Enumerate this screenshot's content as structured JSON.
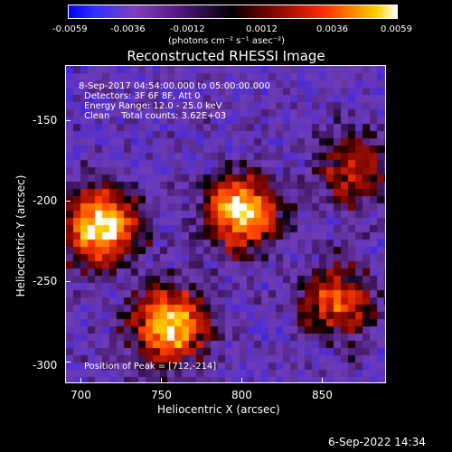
{
  "colorbar": {
    "ticks": [
      "-0.0059",
      "-0.0036",
      "-0.0012",
      "0.0012",
      "0.0036",
      "0.0059"
    ],
    "units": "(photons cm⁻² s⁻¹ asec⁻²)"
  },
  "plot": {
    "title": "Reconstructed RHESSI Image",
    "xlabel": "Heliocentric X (arcsec)",
    "ylabel": "Heliocentric Y (arcsec)",
    "xticks": [
      "700",
      "750",
      "800",
      "850"
    ],
    "yticks": [
      "-150",
      "-200",
      "-250",
      "-300"
    ],
    "info": {
      "time_range": "8-Sep-2017 04:54:00.000 to 05:00:00.000",
      "detectors": "Detectors: 3F 6F 8F, Att 0",
      "energy": "Energy Range: 12.0 - 25.0 keV",
      "clean": "Clean    Total counts: 3.62E+03"
    },
    "peak": "Position of Peak = [712,-214]"
  },
  "footer": {
    "timestamp": "6-Sep-2022 14:34"
  },
  "chart_data": {
    "type": "heatmap",
    "title": "Reconstructed RHESSI Image",
    "xlabel": "Heliocentric X (arcsec)",
    "ylabel": "Heliocentric Y (arcsec)",
    "xlim": [
      690,
      890
    ],
    "ylim": [
      -310,
      -115
    ],
    "colorbar_range": [
      -0.0059,
      0.0059
    ],
    "peak": [
      712,
      -214
    ],
    "sources": [
      {
        "x": 712,
        "y": -214,
        "strength": 1.0
      },
      {
        "x": 755,
        "y": -275,
        "strength": 0.9
      },
      {
        "x": 800,
        "y": -205,
        "strength": 0.9
      },
      {
        "x": 860,
        "y": -260,
        "strength": 0.6
      },
      {
        "x": 870,
        "y": -180,
        "strength": 0.5
      }
    ]
  },
  "colors": {
    "background": "#000000",
    "text": "#ffffff"
  }
}
